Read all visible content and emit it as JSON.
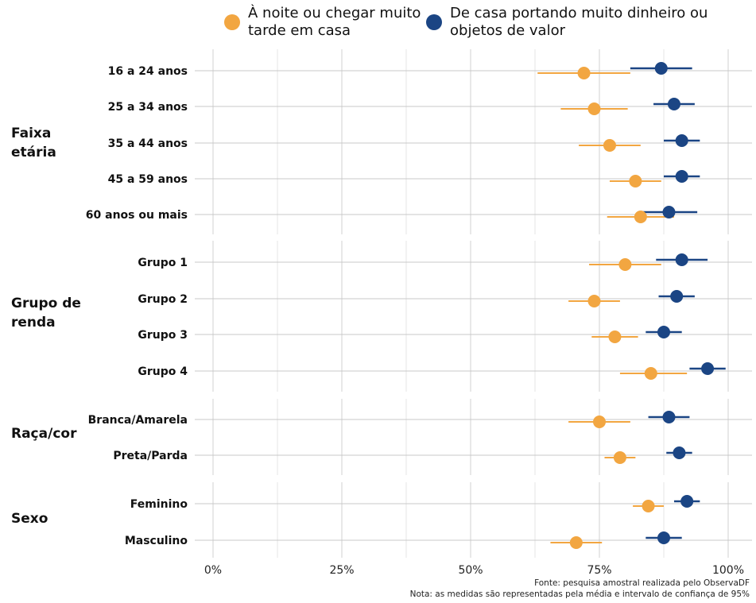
{
  "legend": {
    "series_a": "À noite ou chegar muito tarde em casa",
    "series_b": "De casa portando muito dinheiro ou objetos de valor",
    "color_a": "#F2A641",
    "color_b": "#1B4584"
  },
  "source_note": "Fonte: pesquisa amostral realizada pelo ObservaDF",
  "method_note": "Nota: as medidas são representadas pela média e intervalo de confiança de 95%",
  "chart_data": {
    "type": "scatter",
    "orientation": "horizontal",
    "xlim": [
      0,
      1.05
    ],
    "x_ticks": [
      0,
      0.25,
      0.5,
      0.75,
      1.0
    ],
    "x_tick_labels": [
      "0%",
      "25%",
      "50%",
      "75%",
      "100%"
    ],
    "grid": true,
    "legend_position": "top",
    "series": [
      {
        "name": "À noite ou chegar muito tarde em casa",
        "color": "#F2A641"
      },
      {
        "name": "De casa portando muito dinheiro ou objetos de valor",
        "color": "#1B4584"
      }
    ],
    "groups": [
      {
        "name": "Faixa\netária",
        "rows": [
          {
            "label": "16 a 24 anos",
            "a": {
              "mean": 0.72,
              "lo": 0.63,
              "hi": 0.81
            },
            "b": {
              "mean": 0.87,
              "lo": 0.81,
              "hi": 0.93
            }
          },
          {
            "label": "25 a 34 anos",
            "a": {
              "mean": 0.74,
              "lo": 0.675,
              "hi": 0.805
            },
            "b": {
              "mean": 0.895,
              "lo": 0.855,
              "hi": 0.935
            }
          },
          {
            "label": "35 a 44 anos",
            "a": {
              "mean": 0.77,
              "lo": 0.71,
              "hi": 0.83
            },
            "b": {
              "mean": 0.91,
              "lo": 0.875,
              "hi": 0.945
            }
          },
          {
            "label": "45 a 59 anos",
            "a": {
              "mean": 0.82,
              "lo": 0.77,
              "hi": 0.87
            },
            "b": {
              "mean": 0.91,
              "lo": 0.875,
              "hi": 0.945
            }
          },
          {
            "label": "60 anos ou mais",
            "a": {
              "mean": 0.83,
              "lo": 0.765,
              "hi": 0.895
            },
            "b": {
              "mean": 0.885,
              "lo": 0.83,
              "hi": 0.94
            }
          }
        ]
      },
      {
        "name": "Grupo de\nrenda",
        "rows": [
          {
            "label": "Grupo 1",
            "a": {
              "mean": 0.8,
              "lo": 0.73,
              "hi": 0.87
            },
            "b": {
              "mean": 0.91,
              "lo": 0.86,
              "hi": 0.96
            }
          },
          {
            "label": "Grupo 2",
            "a": {
              "mean": 0.74,
              "lo": 0.69,
              "hi": 0.79
            },
            "b": {
              "mean": 0.9,
              "lo": 0.865,
              "hi": 0.935
            }
          },
          {
            "label": "Grupo 3",
            "a": {
              "mean": 0.78,
              "lo": 0.735,
              "hi": 0.825
            },
            "b": {
              "mean": 0.875,
              "lo": 0.84,
              "hi": 0.91
            }
          },
          {
            "label": "Grupo 4",
            "a": {
              "mean": 0.85,
              "lo": 0.79,
              "hi": 0.92
            },
            "b": {
              "mean": 0.96,
              "lo": 0.925,
              "hi": 0.995
            }
          }
        ]
      },
      {
        "name": "Raça/cor",
        "rows": [
          {
            "label": "Branca/Amarela",
            "a": {
              "mean": 0.75,
              "lo": 0.69,
              "hi": 0.81
            },
            "b": {
              "mean": 0.885,
              "lo": 0.845,
              "hi": 0.925
            }
          },
          {
            "label": "Preta/Parda",
            "a": {
              "mean": 0.79,
              "lo": 0.76,
              "hi": 0.82
            },
            "b": {
              "mean": 0.905,
              "lo": 0.88,
              "hi": 0.93
            }
          }
        ]
      },
      {
        "name": "Sexo",
        "rows": [
          {
            "label": "Feminino",
            "a": {
              "mean": 0.845,
              "lo": 0.815,
              "hi": 0.875
            },
            "b": {
              "mean": 0.92,
              "lo": 0.895,
              "hi": 0.945
            }
          },
          {
            "label": "Masculino",
            "a": {
              "mean": 0.705,
              "lo": 0.655,
              "hi": 0.755
            },
            "b": {
              "mean": 0.875,
              "lo": 0.84,
              "hi": 0.91
            }
          }
        ]
      }
    ]
  }
}
